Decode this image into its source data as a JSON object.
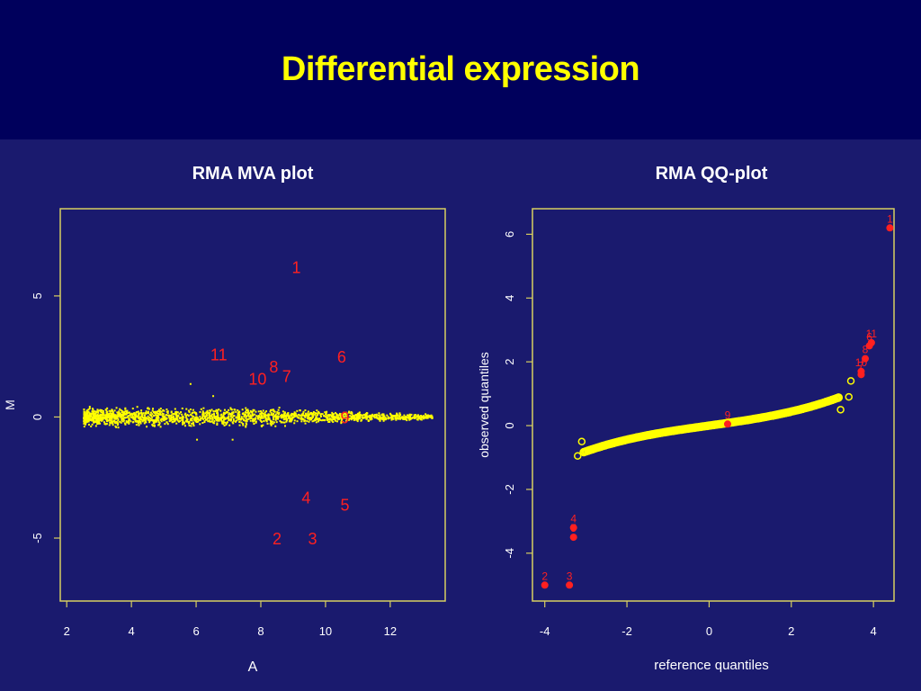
{
  "slide": {
    "title": "Differential expression"
  },
  "colors": {
    "background": "#1a1a6e",
    "header": "#00005c",
    "title": "#ffff00",
    "axis": "#d8d060",
    "points": "#ffff00",
    "highlight": "#ff2020",
    "text": "#ffffff"
  },
  "chart_data": [
    {
      "type": "scatter",
      "title": "RMA MVA plot",
      "xlabel": "A",
      "ylabel": "M",
      "xlim": [
        1.8,
        13.7
      ],
      "ylim": [
        -7.6,
        8.6
      ],
      "xticks": [
        "2",
        "4",
        "6",
        "8",
        "10",
        "12"
      ],
      "yticks": [
        "-5",
        "0",
        "5"
      ],
      "grid": false,
      "bulk": {
        "description_hidden": true,
        "x_range": [
          2.5,
          13.3
        ],
        "center": 0,
        "spread": 0.2
      },
      "labeled_points": [
        {
          "label": "1",
          "x": 9.1,
          "y": 6.2
        },
        {
          "label": "2",
          "x": 8.5,
          "y": -5.0
        },
        {
          "label": "3",
          "x": 9.6,
          "y": -5.0
        },
        {
          "label": "4",
          "x": 9.4,
          "y": -3.3
        },
        {
          "label": "5",
          "x": 10.6,
          "y": -3.6
        },
        {
          "label": "6",
          "x": 10.5,
          "y": 2.5
        },
        {
          "label": "7",
          "x": 8.8,
          "y": 1.7
        },
        {
          "label": "8",
          "x": 8.4,
          "y": 2.1
        },
        {
          "label": "9",
          "x": 10.6,
          "y": 0.0
        },
        {
          "label": "10",
          "x": 7.9,
          "y": 1.6
        },
        {
          "label": "11",
          "x": 6.7,
          "y": 2.6
        }
      ]
    },
    {
      "type": "scatter",
      "title": "RMA QQ-plot",
      "xlabel": "reference quantiles",
      "ylabel": "observed quantiles",
      "xlim": [
        -4.3,
        4.5
      ],
      "ylim": [
        -5.5,
        6.8
      ],
      "xticks": [
        "-4",
        "-2",
        "0",
        "2",
        "4"
      ],
      "yticks": [
        "-4",
        "-2",
        "0",
        "2",
        "4",
        "6"
      ],
      "grid": false,
      "labeled_points": [
        {
          "label": "1",
          "x": 4.4,
          "y": 6.2
        },
        {
          "label": "2",
          "x": -4.0,
          "y": -5.0
        },
        {
          "label": "3",
          "x": -3.4,
          "y": -5.0
        },
        {
          "label": "4",
          "x": -3.3,
          "y": -3.2
        },
        {
          "label": "5",
          "x": -3.3,
          "y": -3.5
        },
        {
          "label": "6",
          "x": 3.9,
          "y": 2.5
        },
        {
          "label": "7",
          "x": 3.7,
          "y": 1.6
        },
        {
          "label": "8",
          "x": 3.8,
          "y": 2.1
        },
        {
          "label": "9",
          "x": 0.45,
          "y": 0.05
        },
        {
          "label": "10",
          "x": 3.7,
          "y": 1.7
        },
        {
          "label": "11",
          "x": 3.95,
          "y": 2.6
        }
      ],
      "open_points": [
        {
          "x": -3.2,
          "y": -0.95
        },
        {
          "x": -3.1,
          "y": -0.5
        },
        {
          "x": 3.4,
          "y": 0.9
        },
        {
          "x": 3.45,
          "y": 1.4
        },
        {
          "x": 3.2,
          "y": 0.5
        }
      ]
    }
  ]
}
